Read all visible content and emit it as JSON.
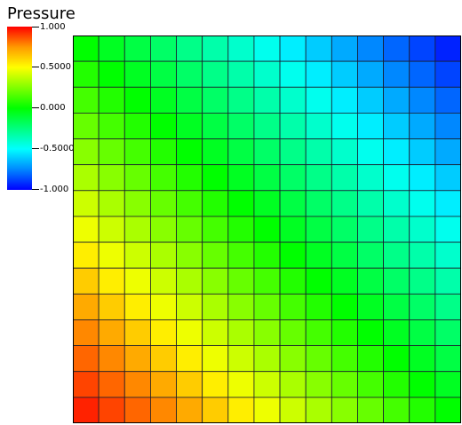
{
  "chart_data": {
    "type": "heatmap",
    "title": "Pressure",
    "colorbar": {
      "min": -1.0,
      "max": 1.0,
      "tick_labels": [
        "1.000",
        "0.5000",
        "0.000",
        "-0.5000",
        "-1.000"
      ],
      "colormap": [
        "#ff0000",
        "#ffff00",
        "#00ff00",
        "#00ffff",
        "#0000ff"
      ]
    },
    "grid_rows": 15,
    "grid_cols": 15,
    "corner_values": {
      "bottom_left": 1.0,
      "bottom_right": 0.0,
      "top_left": 0.0,
      "top_right": -1.0
    },
    "values_model": "bilinear interpolation between corner values"
  }
}
